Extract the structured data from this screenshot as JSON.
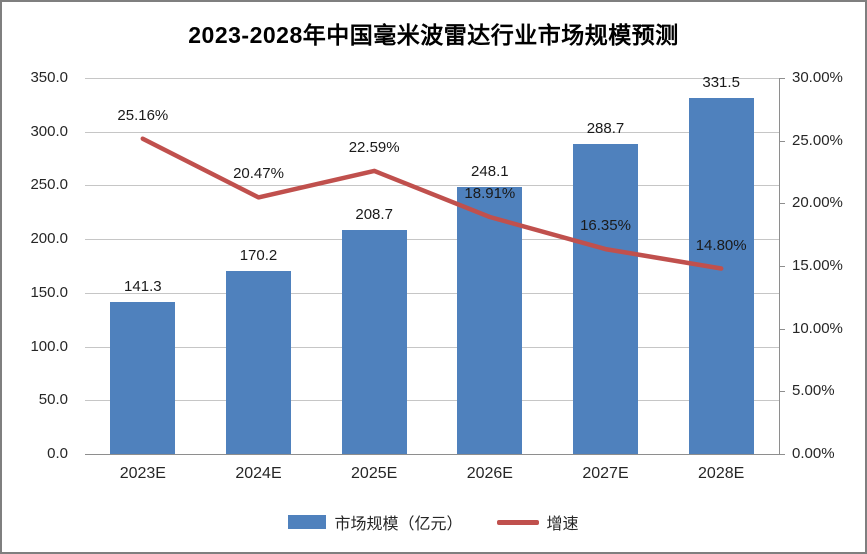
{
  "title": "2023-2028年中国毫米波雷达行业市场规模预测",
  "colors": {
    "bar": "#4f81bd",
    "line": "#c0504d",
    "gridline": "#c6c6c6",
    "axis": "#8e8e8e",
    "text": "#262626",
    "frame_border": "#7f7f7f",
    "background": "#ffffff"
  },
  "chart_data": {
    "type": "bar+line combo, dual axis",
    "title": "2023-2028年中国毫米波雷达行业市场规模预测",
    "categories": [
      "2023E",
      "2024E",
      "2025E",
      "2026E",
      "2027E",
      "2028E"
    ],
    "series": [
      {
        "name": "市场规模（亿元）",
        "type": "bar",
        "axis": "left",
        "values": [
          141.3,
          170.2,
          208.7,
          248.1,
          288.7,
          331.5
        ],
        "labels": [
          "141.3",
          "170.2",
          "208.7",
          "248.1",
          "288.7",
          "331.5"
        ]
      },
      {
        "name": "增速",
        "type": "line",
        "axis": "right",
        "values": [
          25.16,
          20.47,
          22.59,
          18.91,
          16.35,
          14.8
        ],
        "labels": [
          "25.16%",
          "20.47%",
          "22.59%",
          "18.91%",
          "16.35%",
          "14.80%"
        ]
      }
    ],
    "left_axis": {
      "min": 0,
      "max": 350,
      "step": 50,
      "tick_labels": [
        "0.0",
        "50.0",
        "100.0",
        "150.0",
        "200.0",
        "250.0",
        "300.0",
        "350.0"
      ]
    },
    "right_axis": {
      "min": 0,
      "max": 30,
      "step": 5,
      "tick_labels": [
        "0.00%",
        "5.00%",
        "10.00%",
        "15.00%",
        "20.00%",
        "25.00%",
        "30.00%"
      ]
    },
    "grid": "horizontal gridlines on",
    "legend": {
      "position": "bottom-center",
      "items": [
        {
          "label": "市场规模（亿元）",
          "swatch": "bar"
        },
        {
          "label": "增速",
          "swatch": "line"
        }
      ]
    }
  }
}
